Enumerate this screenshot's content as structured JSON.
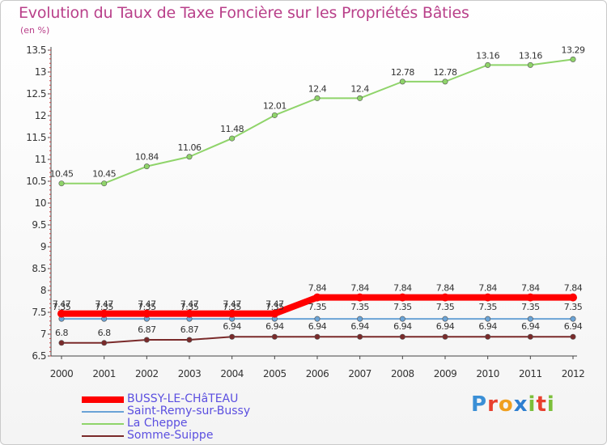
{
  "title": "Evolution du Taux de Taxe Foncière sur les Propriétés Bâties",
  "unit_label": "(en %)",
  "logo": {
    "text": "Proxiti",
    "colors": [
      "#3a8fd6",
      "#e8402e",
      "#f0a020",
      "#2e7fd0",
      "#7cbf3a",
      "#e8402e",
      "#7cbf3a"
    ]
  },
  "chart_data": {
    "type": "line",
    "title": "Evolution du Taux de Taxe Foncière sur les Propriétés Bâties",
    "ylabel": "(en %)",
    "xlabel": "",
    "x": [
      "2000",
      "2001",
      "2002",
      "2003",
      "2004",
      "2005",
      "2006",
      "2007",
      "2008",
      "2009",
      "2010",
      "2011",
      "2012"
    ],
    "ylim": [
      6.5,
      13.5
    ],
    "yticks": [
      "6.5",
      "7",
      "7.5",
      "8",
      "8.5",
      "9",
      "9.5",
      "10",
      "10.5",
      "11",
      "11.5",
      "12",
      "12.5",
      "13",
      "13.5"
    ],
    "grid": false,
    "legend_position": "bottom-left",
    "series": [
      {
        "name": "BUSSY-LE-CHâTEAU",
        "color": "#ff0000",
        "width": 8,
        "values": [
          7.47,
          7.47,
          7.47,
          7.47,
          7.47,
          7.47,
          7.84,
          7.84,
          7.84,
          7.84,
          7.84,
          7.84,
          7.84
        ],
        "labels": [
          "7.47",
          "7.47",
          "7.47",
          "7.47",
          "7.47",
          "7.47",
          "7.84",
          "7.84",
          "7.84",
          "7.84",
          "7.84",
          "7.84",
          "7.84"
        ]
      },
      {
        "name": "Saint-Remy-sur-Bussy",
        "color": "#6aa3d6",
        "width": 2,
        "values": [
          7.35,
          7.35,
          7.35,
          7.35,
          7.35,
          7.35,
          7.35,
          7.35,
          7.35,
          7.35,
          7.35,
          7.35,
          7.35
        ],
        "labels": [
          "7.35",
          "7.35",
          "7.35",
          "7.35",
          "7.35",
          "7.35",
          "7.35",
          "7.35",
          "7.35",
          "7.35",
          "7.35",
          "7.35",
          "7.35"
        ]
      },
      {
        "name": "La Cheppe",
        "color": "#8fd46a",
        "width": 2,
        "values": [
          10.45,
          10.45,
          10.84,
          11.06,
          11.48,
          12.01,
          12.4,
          12.4,
          12.78,
          12.78,
          13.16,
          13.16,
          13.29
        ],
        "labels": [
          "10.45",
          "10.45",
          "10.84",
          "11.06",
          "11.48",
          "12.01",
          "12.4",
          "12.4",
          "12.78",
          "12.78",
          "13.16",
          "13.16",
          "13.29"
        ]
      },
      {
        "name": "Somme-Suippe",
        "color": "#7a2a2a",
        "width": 2,
        "values": [
          6.8,
          6.8,
          6.87,
          6.87,
          6.94,
          6.94,
          6.94,
          6.94,
          6.94,
          6.94,
          6.94,
          6.94,
          6.94
        ],
        "labels": [
          "6.8",
          "6.8",
          "6.87",
          "6.87",
          "6.94",
          "6.94",
          "6.94",
          "6.94",
          "6.94",
          "6.94",
          "6.94",
          "6.94",
          "6.94"
        ]
      }
    ]
  }
}
